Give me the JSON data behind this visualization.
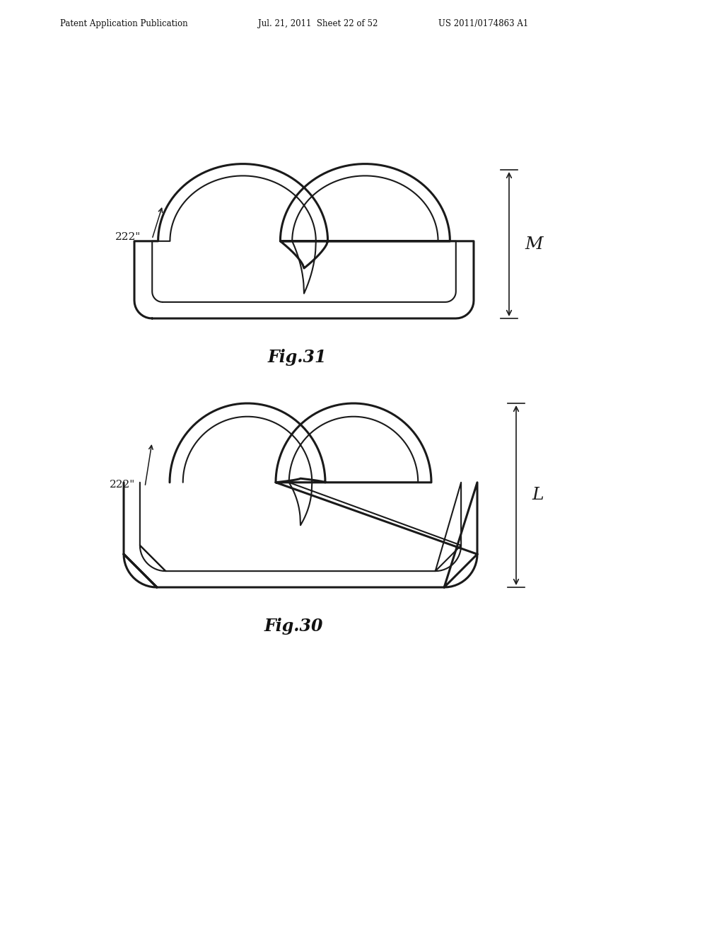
{
  "background_color": "#ffffff",
  "header_left": "Patent Application Publication",
  "header_mid": "Jul. 21, 2011  Sheet 22 of 52",
  "header_right": "US 2011/0174863 A1",
  "fig31_label": "Fig.31",
  "fig30_label": "Fig.30",
  "label_222": "222\"",
  "dim_M": "M",
  "dim_L": "L",
  "line_color": "#1a1a1a",
  "lw_outer": 2.2,
  "lw_inner": 1.5
}
